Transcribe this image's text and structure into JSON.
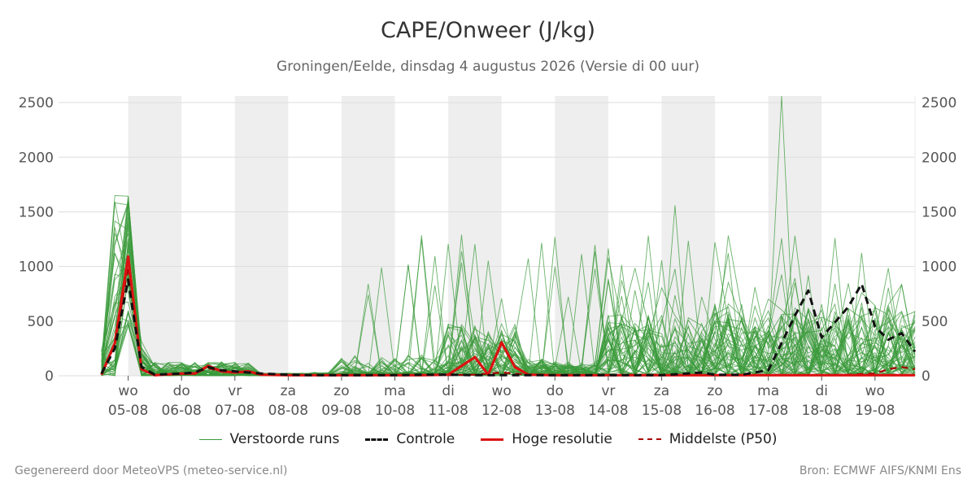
{
  "header": {
    "title": "CAPE/Onweer (J/kg)",
    "subtitle": "Groningen/Eelde, dinsdag  4 augustus 2026 (Versie di 00 uur)"
  },
  "legend": [
    {
      "label": "Verstoorde runs",
      "color": "#3a9a3a",
      "style": "thin"
    },
    {
      "label": "Controle",
      "color": "#111111",
      "style": "dashed"
    },
    {
      "label": "Hoge resolutie",
      "color": "#dd1111",
      "style": "thick"
    },
    {
      "label": "Middelste (P50)",
      "color": "#aa0000",
      "style": "dashed"
    }
  ],
  "footer": {
    "left": "Gegenereerd door MeteoVPS (meteo-service.nl)",
    "right": "Bron: ECMWF AIFS/KNMI Ens"
  },
  "colors": {
    "ensemble": "#3a9a3a",
    "control": "#111111",
    "hires": "#dd1111",
    "median": "#aa0000",
    "weekend_band": "#eeeeee",
    "grid": "#dddddd"
  },
  "chart_data": {
    "type": "line",
    "title": "CAPE/Onweer (J/kg)",
    "ylabel": "",
    "ylim": [
      0,
      2560
    ],
    "yticks": [
      0,
      500,
      1000,
      1500,
      2000,
      2500
    ],
    "x_unit": "days since 2026-08-04 00:00",
    "xlim": [
      0,
      15.75
    ],
    "xticks": [
      {
        "day": "wo",
        "date": "05-08"
      },
      {
        "day": "do",
        "date": "06-08"
      },
      {
        "day": "vr",
        "date": "07-08"
      },
      {
        "day": "za",
        "date": "08-08"
      },
      {
        "day": "zo",
        "date": "09-08"
      },
      {
        "day": "ma",
        "date": "10-08"
      },
      {
        "day": "di",
        "date": "11-08"
      },
      {
        "day": "wo",
        "date": "12-08"
      },
      {
        "day": "do",
        "date": "13-08"
      },
      {
        "day": "vr",
        "date": "14-08"
      },
      {
        "day": "za",
        "date": "15-08"
      },
      {
        "day": "zo",
        "date": "16-08"
      },
      {
        "day": "ma",
        "date": "17-08"
      },
      {
        "day": "di",
        "date": "18-08"
      },
      {
        "day": "wo",
        "date": "19-08"
      }
    ],
    "shaded_bands": [
      [
        1,
        2
      ],
      [
        3,
        4
      ],
      [
        5,
        6
      ],
      [
        7,
        8
      ],
      [
        9,
        10
      ],
      [
        11,
        12
      ],
      [
        13,
        14
      ]
    ],
    "grid": true,
    "legend_position": "bottom",
    "series": [
      {
        "name": "Controle",
        "style": "dashed",
        "color": "#111111",
        "points": [
          [
            0.5,
            20
          ],
          [
            0.75,
            250
          ],
          [
            1,
            880
          ],
          [
            1.25,
            80
          ],
          [
            1.5,
            10
          ],
          [
            2,
            20
          ],
          [
            2.25,
            30
          ],
          [
            2.5,
            80
          ],
          [
            2.75,
            50
          ],
          [
            3,
            40
          ],
          [
            3.25,
            30
          ],
          [
            3.5,
            20
          ],
          [
            4,
            10
          ],
          [
            4.5,
            5
          ],
          [
            5,
            5
          ],
          [
            5.5,
            5
          ],
          [
            6,
            5
          ],
          [
            6.5,
            10
          ],
          [
            7,
            10
          ],
          [
            7.5,
            5
          ],
          [
            8,
            5
          ],
          [
            9,
            5
          ],
          [
            10,
            5
          ],
          [
            11,
            5
          ],
          [
            11.75,
            30
          ],
          [
            12,
            10
          ],
          [
            12.5,
            10
          ],
          [
            13,
            50
          ],
          [
            13.5,
            550
          ],
          [
            13.75,
            780
          ],
          [
            14,
            350
          ],
          [
            14.5,
            630
          ],
          [
            14.75,
            840
          ],
          [
            15,
            450
          ],
          [
            15.25,
            330
          ],
          [
            15.5,
            390
          ],
          [
            15.75,
            220
          ]
        ]
      },
      {
        "name": "Hoge resolutie",
        "style": "thick",
        "color": "#dd1111",
        "points": [
          [
            0.5,
            10
          ],
          [
            0.75,
            300
          ],
          [
            1,
            1090
          ],
          [
            1.25,
            60
          ],
          [
            1.5,
            5
          ],
          [
            2,
            20
          ],
          [
            2.25,
            20
          ],
          [
            2.5,
            90
          ],
          [
            2.75,
            40
          ],
          [
            3,
            30
          ],
          [
            3.25,
            40
          ],
          [
            3.5,
            10
          ],
          [
            4,
            5
          ],
          [
            4.5,
            5
          ],
          [
            5,
            5
          ],
          [
            5.5,
            5
          ],
          [
            6,
            5
          ],
          [
            6.5,
            5
          ],
          [
            7,
            10
          ],
          [
            7.5,
            170
          ],
          [
            7.75,
            10
          ],
          [
            8,
            305
          ],
          [
            8.25,
            80
          ],
          [
            8.5,
            10
          ],
          [
            9,
            5
          ],
          [
            10,
            5
          ],
          [
            11,
            5
          ],
          [
            12,
            5
          ],
          [
            13,
            5
          ],
          [
            14,
            5
          ],
          [
            15,
            5
          ],
          [
            15.75,
            5
          ]
        ]
      },
      {
        "name": "Middelste (P50)",
        "style": "dashed",
        "color": "#aa0000",
        "points": [
          [
            0.5,
            15
          ],
          [
            0.75,
            280
          ],
          [
            1,
            1000
          ],
          [
            1.25,
            60
          ],
          [
            1.5,
            5
          ],
          [
            2,
            15
          ],
          [
            2.25,
            25
          ],
          [
            2.5,
            70
          ],
          [
            2.75,
            40
          ],
          [
            3,
            30
          ],
          [
            3.25,
            30
          ],
          [
            3.5,
            10
          ],
          [
            4,
            5
          ],
          [
            5,
            5
          ],
          [
            6,
            5
          ],
          [
            7,
            5
          ],
          [
            7.5,
            10
          ],
          [
            8,
            30
          ],
          [
            8.5,
            10
          ],
          [
            9,
            5
          ],
          [
            10,
            5
          ],
          [
            11,
            5
          ],
          [
            12,
            5
          ],
          [
            13,
            5
          ],
          [
            14,
            5
          ],
          [
            14.5,
            10
          ],
          [
            15,
            20
          ],
          [
            15.25,
            60
          ],
          [
            15.5,
            80
          ],
          [
            15.75,
            60
          ]
        ]
      }
    ]
  }
}
